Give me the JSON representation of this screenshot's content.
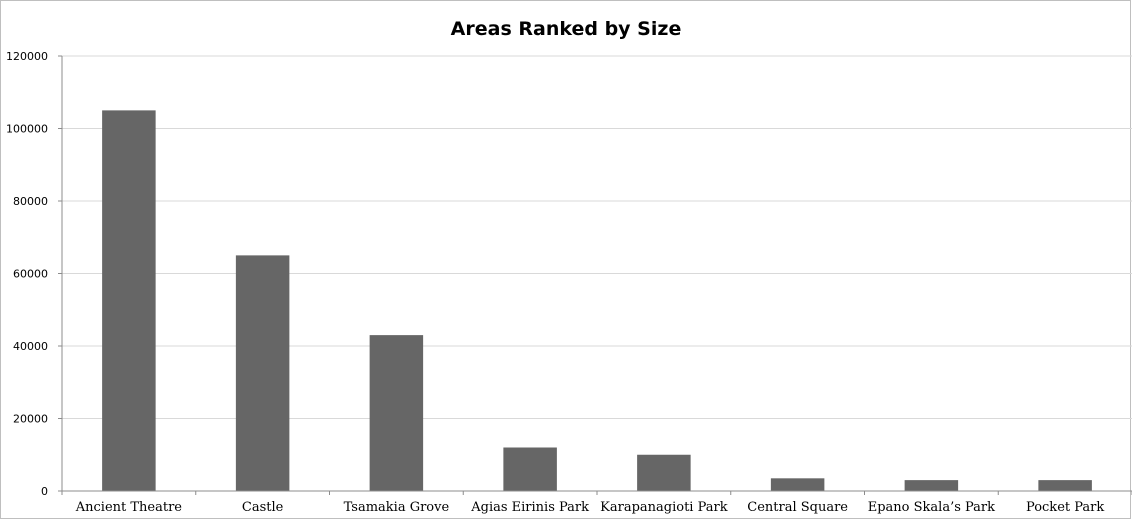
{
  "chart_data": {
    "type": "bar",
    "title": "Areas Ranked by Size",
    "xlabel": "",
    "ylabel": "",
    "categories": [
      "Ancient Theatre",
      "Castle",
      "Tsamakia Grove",
      "Agias Eirinis Park",
      "Karapanagioti Park",
      "Central Square",
      "Epano Skala’s Park",
      "Pocket Park"
    ],
    "values": [
      105000,
      65000,
      43000,
      12000,
      10000,
      3500,
      3000,
      3000
    ],
    "ylim": [
      0,
      120000
    ],
    "yticks": [
      0,
      20000,
      40000,
      60000,
      80000,
      100000,
      120000
    ],
    "ytick_labels": [
      "0",
      "20000",
      "40000",
      "60000",
      "80000",
      "100000",
      "120000"
    ],
    "grid": true,
    "legend": "none",
    "colors": {
      "bar": "#666666",
      "grid": "#d9d9d9",
      "axis": "#8c8c8c"
    }
  }
}
